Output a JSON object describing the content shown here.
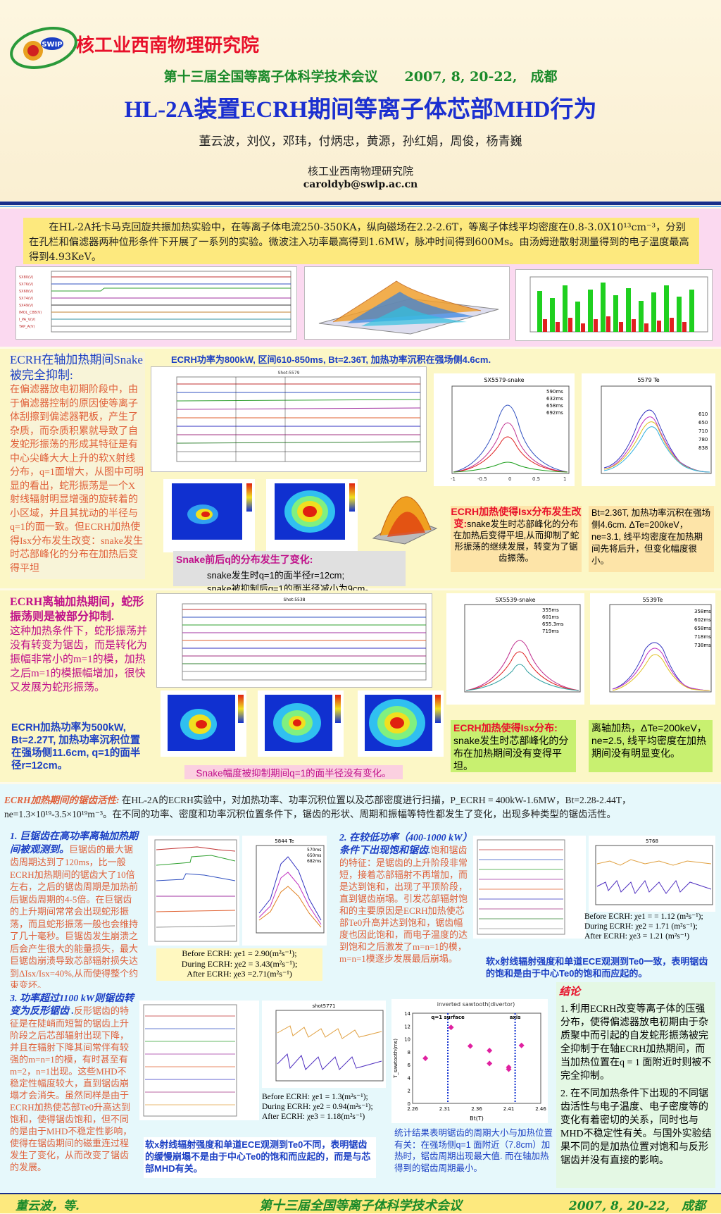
{
  "header": {
    "logo_text": "SWIP",
    "institute": "核工业西南物理研究院",
    "conference": "第十三届全国等离子体科学技术会议　　2007, 8, 20-22,　成都",
    "title": "HL-2A装置ECRH期间等离子体芯部MHD行为",
    "authors": "董云波，刘仪，邓玮，付炳忠，黄源，孙红娟，周俊，杨青巍",
    "affiliation": "核工业西南物理研究院",
    "email": "caroldyb@swip.ac.cn"
  },
  "abstract": "在HL-2A托卡马克回旋共振加热实验中，在等离子体电流250-350KA，纵向磁场在2.2-2.6T，等离子体线平均密度在0.8-3.0X10¹³cm⁻³，分别在孔栏和偏滤器两种位形条件下开展了一系列的实验。微波注入功率最高得到1.6MW，脉冲时间得到600Ms。由汤姆逊散射测量得到的电子温度最高得到4.93KeV。",
  "sec2": {
    "left_title": "ECRH在轴加热期间Snake被完全抑制:",
    "left_body": "在偏滤器放电初期阶段中，由于偏滤器控制的原因使等离子体刮擦到偏滤器靶板，产生了杂质，而杂质积累就导致了自发蛇形振荡的形成其特征是有中心尖峰大大上升的软X射线分布，q=1面增大，从图中可明显的看出，蛇形振荡是一个X射线辐射明显增强的旋转着的小区域，并且其扰动的半径与q=1的面一致。但ECRH加热使得Isx分布发生改变：snake发生时芯部峰化的分布在加热后变得平坦",
    "banner": "ECRH功率为800kW, 区间610-850ms, Bt=2.36T, 加热功率沉积在强场侧4.6cm.",
    "snake_title": "Snake前后q的分布发生了变化:",
    "snake_l1": "snake发生时q=1的面半径r=12cm;",
    "snake_l2": "snake被抑制后q=1的面半径减小为9cm。",
    "ecrh_box_title": "ECRH加热使得Isx分布发生改变:",
    "ecrh_box_body": "snake发生时芯部峰化的分布在加热后变得平坦,从而抑制了蛇形振荡的继续发展，转变为了锯齿振荡。",
    "bt_box": "Bt=2.36T, 加热功率沉积在强场侧4.6cm. ΔTe=200keV，ne=3.1, 线平均密度在加热期间先将后升，但变化幅度很小。",
    "plot1_title": "SX5579-snake",
    "plot1_legend": [
      "590ms",
      "632ms",
      "658ms",
      "692ms"
    ],
    "plot2_title": "5579 Te",
    "plot2_legend": [
      "610",
      "650",
      "710",
      "780",
      "838"
    ],
    "shot_title": "Shot:5579"
  },
  "sec3": {
    "left_title": "ECRH离轴加热期间，蛇形振荡则是被部分抑制.",
    "left_body": "这种加热条件下，蛇形振荡并没有转变为锯齿，而是转化为振幅非常小的m=1的模，加热之后m=1的模振幅增加，很快又发展为蛇形振荡。",
    "left_params": "ECRH加热功率为500kW, Bt=2.27T, 加热功率沉积位置在强场侧11.6cm, q=1的面半径r=12cm。",
    "banner": "Snake幅度被抑制期间q=1的面半径没有变化。",
    "ecrh_box_title": "ECRH加热使得Isx分布:",
    "ecrh_box_body": "snake发生时芯部峰化的分布在加热期间没有变得平坦。",
    "off_box": "离轴加热，ΔTe=200keV，ne=2.5, 线平均密度在加热期间没有明显变化。",
    "plot1_title": "SX5539-snake",
    "plot1_legend": [
      "355ms",
      "601ms",
      "655.3ms",
      "719ms"
    ],
    "plot2_title": "5539Te",
    "plot2_legend": [
      "358ms",
      "602ms",
      "658ms",
      "718ms",
      "738ms"
    ],
    "shot_title": "Shot:5538"
  },
  "sec4": {
    "intro_title": "ECRH加热期间的锯齿活性:",
    "intro_body": "在HL-2A的ECRH实验中，对加热功率、功率沉积位置以及芯部密度进行扫描，P_ECRH = 400kW-1.6MW，Bt=2.28-2.44T，ne=1.3×10¹⁹-3.5×10¹⁹m⁻³。在不同的功率、密度和功率沉积位置条件下，锯齿的形状、周期和振幅等特性都发生了变化，出现多种类型的锯齿活性。",
    "p1_title": "1. 巨锯齿在高功率离轴加热期间被观测到。",
    "p1_body": "巨锯齿的最大锯齿周期达到了120ms，比一般ECRH加热期间的锯齿大了10倍左右，之后的锯齿周期是加热前后锯齿周期的4-5倍。在巨锯齿的上升期间常常会出现蛇形振荡，而且蛇形振荡一般也会维持了几十毫秒。巨锯齿发生崩溃之后会产生很大的能量损失，最大巨锯齿崩溃导致芯部辐射损失达到ΔIsx/Isx=40%,从而使得整个约束变坏。",
    "p1_chi": [
      "Before ECRH: χe1 = 2.90(m²s⁻¹);",
      "During ECRH: χe2 = 3.43(m²s⁻¹);",
      "After ECRH: χe3 =2.71(m²s⁻¹)"
    ],
    "p1_te_title": "5844 Te",
    "p1_te_legend": [
      "570ms",
      "650ms",
      "682ms"
    ],
    "p2_title": "2. 在较低功率（400-1000 kW）条件下出现饱和锯齿.",
    "p2_body": "饱和锯齿的特征：是锯齿的上升阶段非常短，接着芯部辐射不再增加，而是达到饱和，出现了平顶阶段，直到锯齿崩塌。引发芯部辐射饱和的主要原因是ECRH加热使芯部Te0升高并达到饱和，锯齿幅度也因此饱和，而电子温度的达到饱和之后激发了m=n=1的模，m=n=1模逐步发展最后崩塌。",
    "p2_chi": [
      "Before ECRH: χe1 = = 1.12 (m²s⁻¹);",
      "During ECRH: χe2 = 1.71 (m²s⁻¹);",
      "After ECRH: χe3 = 1.21 (m²s⁻¹)"
    ],
    "p2_caption": "软x射线辐射强度和单道ECE观测到Te0一致，表明锯齿的饱和是由于中心Te0的饱和而应起的。",
    "p2_plot_title": "5768",
    "p3_title": "3. 功率超过1100 kW则锯齿转变为反形锯齿 .",
    "p3_body": "反形锯齿的特征是在陡峭而短暂的锯齿上升阶段之后芯部辐射出现下降，并且在辐射下降其间常伴有较强的m=n=1的模，有时甚至有m=2，n=1出现。这些MHD不稳定性幅度较大，直到锯齿崩塌才会消失。虽然同样是由于ECRH加热使芯部Te0升高达到饱和，使得锯齿饱和，但不同的是由于MHD不稳定性影响，使得在锯齿期间的磁重连过程发生了变化，从而改变了锯齿的发展。",
    "p3_chi": [
      "Before ECRH: χe1 = 1.3(m²s⁻¹);",
      "During ECRH: χe2 = 0.94(m²s⁻¹);",
      "After ECRH: χe3 = 1.18(m²s⁻¹)"
    ],
    "p3_caption": "软x射线辐射强度和单道ECE观测到Te0不同，表明锯齿的缓慢崩塌不是由于中心Te0的饱和而应起的，而是与芯部MHD有关。",
    "p3_plot_title": "shot5771",
    "scatter_caption": "统计结果表明锯齿的周期大小与加热位置有关：在强场侧q=1 面附近（7.8cm）加热时，锯齿周期出现最大值. 而在轴加热得到的锯齿周期最小。",
    "conclusion_title": "结论",
    "conclusion_1": "1. 利用ECRH改变等离子体的压强分布，使得偏滤器放电初期由于杂质聚中而引起的自发蛇形振荡被完全抑制于在轴ECRH加热期间，而当加热位置在q = 1 面附近时则被不完全抑制。",
    "conclusion_2": "2. 在不同加热条件下出现的不同锯齿活性与电子温度、电子密度等的变化有着密切的关系，同时也与MHD不稳定性有关。与国外实验结果不同的是加热位置对饱和与反形锯齿并没有直接的影响。"
  },
  "chart_data": [
    {
      "type": "scatter",
      "title": "inverted sawtooth(divertor)",
      "xlabel": "Bt(T)",
      "ylabel": "T_sawtooth(ms)",
      "xlim": [
        2.26,
        2.46
      ],
      "ylim": [
        0,
        14
      ],
      "x_ticks": [
        "2.26",
        "2.31",
        "2.36",
        "2.41",
        "2.46"
      ],
      "y_ticks": [
        "0",
        "2",
        "4",
        "6",
        "8",
        "10",
        "12",
        "14"
      ],
      "annotations": [
        "q=1 surface",
        "axis"
      ],
      "x": [
        2.28,
        2.32,
        2.35,
        2.38,
        2.38,
        2.41,
        2.41,
        2.43
      ],
      "y": [
        7.0,
        11.8,
        8.9,
        8.2,
        6.2,
        5.6,
        5.3,
        9.0
      ]
    }
  ],
  "footer": {
    "left": "董云波，等.",
    "center": "第十三届全国等离子体科学技术会议",
    "right": "2007, 8, 20-22,　成都"
  }
}
